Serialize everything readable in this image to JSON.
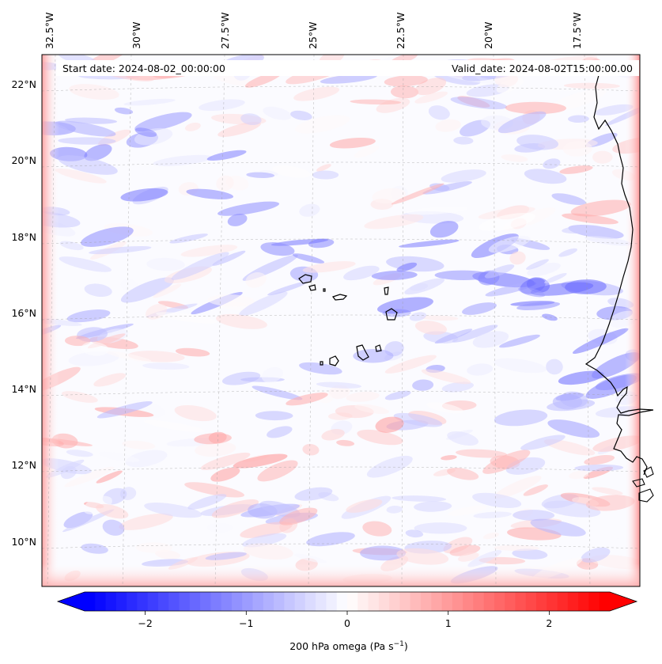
{
  "map": {
    "annotations": {
      "start_date": "Start date: 2024-08-02_00:00:00",
      "valid_date": "Valid_date: 2024-08-02T15:00:00.00"
    },
    "lon_labels": [
      "32.5°W",
      "30°W",
      "27.5°W",
      "25°W",
      "22.5°W",
      "20°W",
      "17.5°W"
    ],
    "lat_labels": [
      "22°N",
      "20°N",
      "18°N",
      "16°N",
      "14°N",
      "12°N",
      "10°N"
    ],
    "colorbar": {
      "label_main": "200 hPa omega (Pa s",
      "label_exp": "−1",
      "label_close": ")",
      "tick_labels": [
        "−2",
        "−1",
        "0",
        "1",
        "2"
      ],
      "tick_values": [
        -2,
        -1,
        0,
        1,
        2
      ],
      "range": [
        -2.6,
        2.6
      ],
      "colormap": "bwr",
      "color_low": "#0000ff",
      "color_mid": "#ffffff",
      "color_high": "#ff0000"
    },
    "features": [
      "coastline-west-africa",
      "cape-verde-islands"
    ]
  }
}
